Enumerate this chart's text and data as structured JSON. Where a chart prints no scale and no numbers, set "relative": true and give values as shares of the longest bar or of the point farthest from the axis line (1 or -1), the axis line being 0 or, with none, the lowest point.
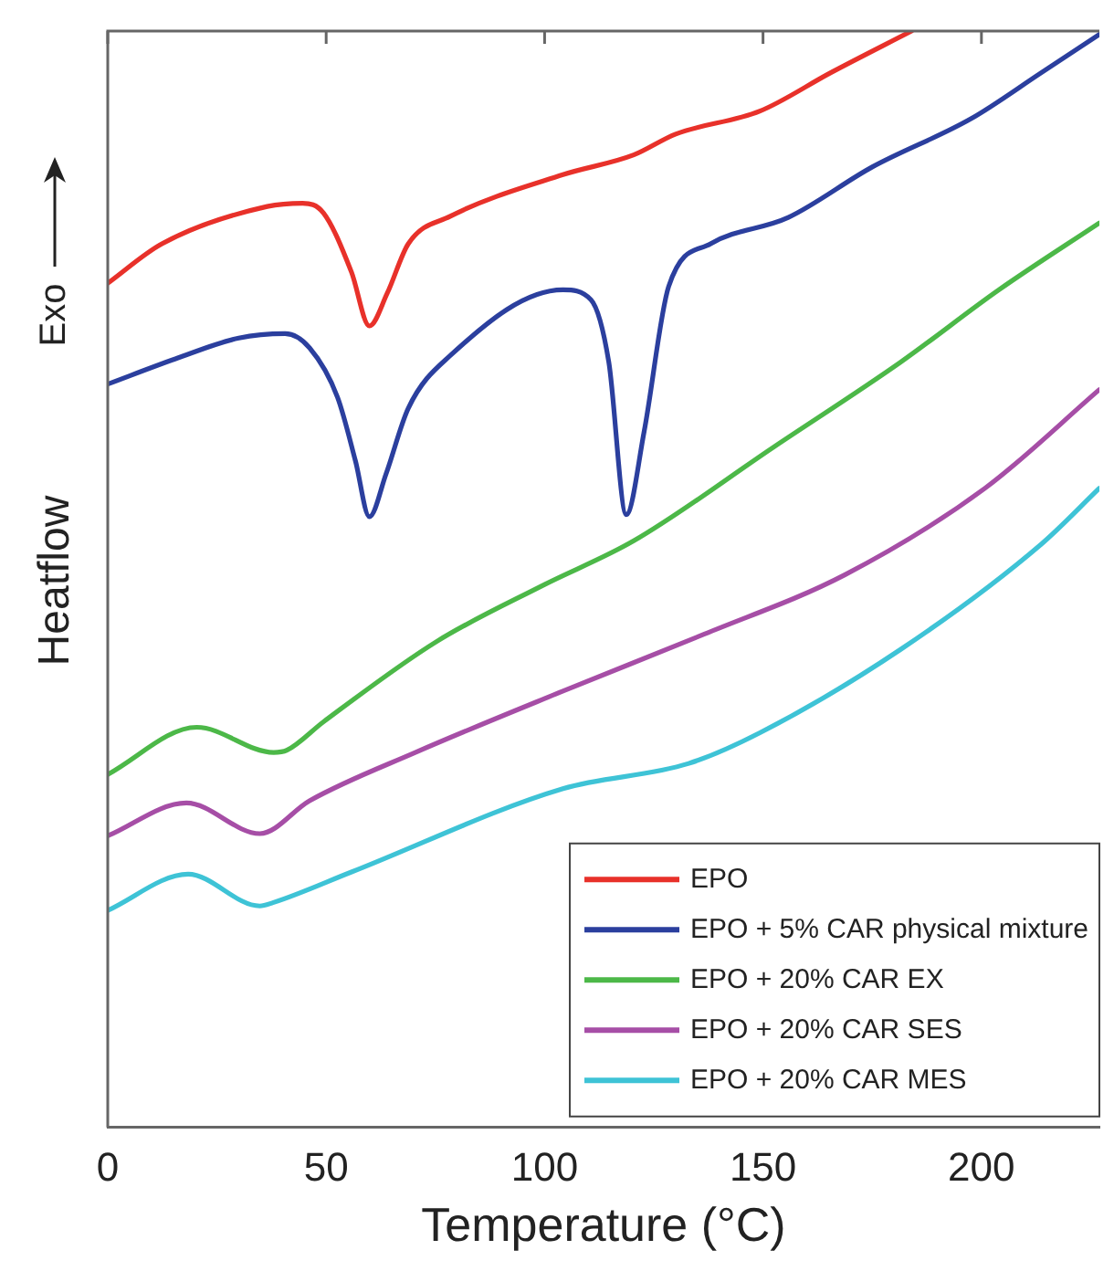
{
  "chart_data": {
    "type": "line",
    "xlabel": "Temperature (°C)",
    "ylabel": "Heatflow",
    "annotations": [
      "Exo"
    ],
    "relative": true,
    "xlim": [
      0,
      227
    ],
    "xticks": [
      0,
      50,
      100,
      150,
      200
    ],
    "grid": false,
    "legend": "bottom right",
    "marker": "none",
    "line_style": "solid",
    "series": [
      {
        "name": "EPO",
        "color": "#e8312a",
        "x": [
          0,
          12.4,
          36.5,
          44.6,
          49.4,
          55.8,
          59.9,
          64,
          68.8,
          78.4,
          104.2,
          120.4,
          130,
          149.3,
          165.5,
          184
        ],
        "values": [
          0.77,
          0.806,
          0.84,
          0.843,
          0.834,
          0.78,
          0.731,
          0.761,
          0.806,
          0.831,
          0.869,
          0.887,
          0.906,
          0.927,
          0.962,
          1.0
        ]
      },
      {
        "name": "EPO + 5% CAR physical mixture",
        "color": "#2b3f9e",
        "x": [
          0,
          15.5,
          30,
          40.6,
          46.2,
          52.6,
          56.7,
          59.9,
          63.7,
          68.8,
          78.4,
          104.2,
          110.6,
          114.7,
          118.7,
          122.8,
          128.4,
          138,
          155.8,
          175,
          197.6,
          213.7,
          227
        ],
        "values": [
          0.678,
          0.701,
          0.72,
          0.724,
          0.711,
          0.666,
          0.608,
          0.557,
          0.596,
          0.656,
          0.704,
          0.764,
          0.755,
          0.698,
          0.559,
          0.635,
          0.767,
          0.806,
          0.83,
          0.876,
          0.92,
          0.962,
          0.997
        ]
      },
      {
        "name": "EPO + 20% CAR EX",
        "color": "#4cb848",
        "x": [
          0,
          20.4,
          38,
          41,
          49.4,
          75.2,
          99.4,
          120.4,
          152.6,
          181.5,
          204,
          227
        ],
        "values": [
          0.322,
          0.365,
          0.342,
          0.344,
          0.37,
          0.443,
          0.494,
          0.535,
          0.621,
          0.698,
          0.764,
          0.825
        ]
      },
      {
        "name": "EPO + 20% CAR SES",
        "color": "#a64ea6",
        "x": [
          0,
          18,
          34.8,
          46.2,
          70.4,
          104.2,
          136.6,
          168.7,
          200.8,
          227
        ],
        "values": [
          0.266,
          0.296,
          0.268,
          0.298,
          0.342,
          0.398,
          0.45,
          0.504,
          0.583,
          0.673
        ]
      },
      {
        "name": "EPO + 20% CAR MES",
        "color": "#3ec3d6",
        "x": [
          0,
          18.4,
          34.8,
          37.8,
          55.8,
          104.2,
          133,
          149.3,
          181.5,
          213.7,
          227
        ],
        "values": [
          0.198,
          0.231,
          0.202,
          0.205,
          0.233,
          0.309,
          0.332,
          0.36,
          0.436,
          0.532,
          0.583
        ]
      }
    ]
  }
}
